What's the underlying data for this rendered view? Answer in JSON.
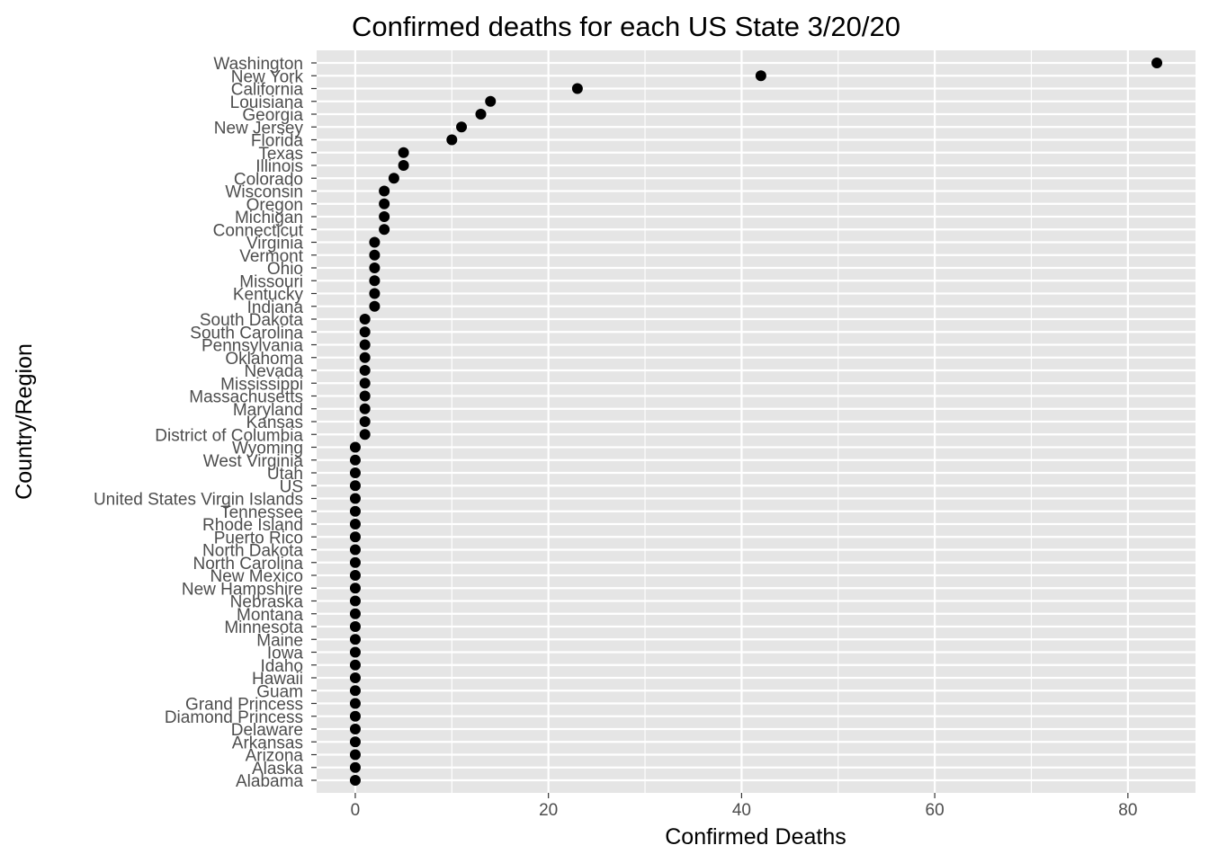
{
  "chart_data": {
    "type": "scatter",
    "title": "Confirmed deaths for each US State 3/20/20",
    "xlabel": "Confirmed Deaths",
    "ylabel": "Country/Region",
    "xlim": [
      -4,
      87
    ],
    "x_ticks": [
      0,
      20,
      40,
      60,
      80
    ],
    "x_tick_labels": [
      "0",
      "20",
      "40",
      "60",
      "80"
    ],
    "grid": true,
    "legend": "none",
    "colors": {
      "panel_background": "#e5e5e5",
      "grid": "#ffffff",
      "point": "#000000",
      "tick_label": "#4d4d4d"
    },
    "categories": [
      "Washington",
      "New York",
      "California",
      "Louisiana",
      "Georgia",
      "New Jersey",
      "Florida",
      "Texas",
      "Illinois",
      "Colorado",
      "Wisconsin",
      "Oregon",
      "Michigan",
      "Connecticut",
      "Virginia",
      "Vermont",
      "Ohio",
      "Missouri",
      "Kentucky",
      "Indiana",
      "South Dakota",
      "South Carolina",
      "Pennsylvania",
      "Oklahoma",
      "Nevada",
      "Mississippi",
      "Massachusetts",
      "Maryland",
      "Kansas",
      "District of Columbia",
      "Wyoming",
      "West Virginia",
      "Utah",
      "US",
      "United States Virgin Islands",
      "Tennessee",
      "Rhode Island",
      "Puerto Rico",
      "North Dakota",
      "North Carolina",
      "New Mexico",
      "New Hampshire",
      "Nebraska",
      "Montana",
      "Minnesota",
      "Maine",
      "Iowa",
      "Idaho",
      "Hawaii",
      "Guam",
      "Grand Princess",
      "Diamond Princess",
      "Delaware",
      "Arkansas",
      "Arizona",
      "Alaska",
      "Alabama"
    ],
    "values": [
      83,
      42,
      23,
      14,
      13,
      11,
      10,
      5,
      5,
      4,
      3,
      3,
      3,
      3,
      2,
      2,
      2,
      2,
      2,
      2,
      1,
      1,
      1,
      1,
      1,
      1,
      1,
      1,
      1,
      1,
      0,
      0,
      0,
      0,
      0,
      0,
      0,
      0,
      0,
      0,
      0,
      0,
      0,
      0,
      0,
      0,
      0,
      0,
      0,
      0,
      0,
      0,
      0,
      0,
      0,
      0,
      0
    ]
  }
}
